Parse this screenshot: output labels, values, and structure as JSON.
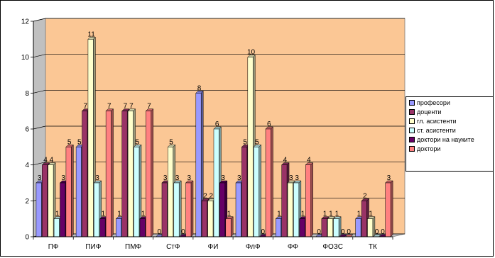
{
  "chart_data": {
    "type": "bar",
    "categories": [
      "ПФ",
      "ПИФ",
      "ПМФ",
      "СтФ",
      "ФИ",
      "ФлФ",
      "ФФ",
      "ФОЗС",
      "ТК"
    ],
    "ylim": [
      0,
      12
    ],
    "yticks": [
      "0",
      "2",
      "4",
      "6",
      "8",
      "10",
      "12"
    ],
    "grid": true,
    "legend_position": "right",
    "plot_background": "#FBC795",
    "series": [
      {
        "name": "професори",
        "color": "#9999FF",
        "values": [
          3,
          5,
          1,
          0,
          8,
          3,
          1,
          0,
          1
        ]
      },
      {
        "name": "доценти",
        "color": "#993366",
        "values": [
          4,
          7,
          7,
          3,
          2,
          5,
          4,
          1,
          2
        ]
      },
      {
        "name": "гл. асистенти",
        "color": "#FFFFCC",
        "values": [
          4,
          11,
          7,
          5,
          2,
          10,
          3,
          1,
          1
        ]
      },
      {
        "name": "ст. асистенти",
        "color": "#CCFFFF",
        "values": [
          1,
          3,
          5,
          3,
          6,
          5,
          3,
          1,
          0
        ]
      },
      {
        "name": "доктори на науките",
        "color": "#660066",
        "values": [
          3,
          1,
          1,
          0,
          3,
          0,
          1,
          0,
          0
        ]
      },
      {
        "name": "доктори",
        "color": "#FF8080",
        "values": [
          5,
          7,
          7,
          3,
          1,
          6,
          4,
          0,
          3
        ]
      }
    ]
  }
}
